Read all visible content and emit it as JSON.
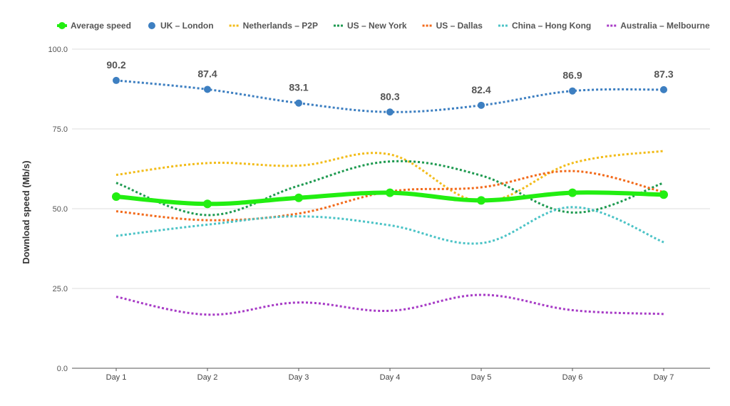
{
  "chart_data": {
    "type": "line",
    "title": "",
    "xlabel": "",
    "ylabel": "Download speed (Mb/s)",
    "ylim": [
      0,
      100
    ],
    "yticks": [
      "0.0",
      "25.0",
      "50.0",
      "75.0",
      "100.0"
    ],
    "categories": [
      "Day 1",
      "Day 2",
      "Day 3",
      "Day 4",
      "Day 5",
      "Day 6",
      "Day 7"
    ],
    "legend_position": "top",
    "grid": true,
    "series": [
      {
        "name": "Average speed",
        "color": "#22ee11",
        "style": "solid-markers",
        "values": [
          53.8,
          51.5,
          53.4,
          55.0,
          52.6,
          55.0,
          54.4
        ]
      },
      {
        "name": "UK – London",
        "color": "#3d7fc1",
        "style": "dotted-markers",
        "values": [
          90.2,
          87.4,
          83.1,
          80.3,
          82.4,
          86.9,
          87.3
        ],
        "labels": [
          "90.2",
          "87.4",
          "83.1",
          "80.3",
          "82.4",
          "86.9",
          "87.3"
        ]
      },
      {
        "name": "Netherlands – P2P",
        "color": "#f2bc1a",
        "style": "dotted",
        "values": [
          60.6,
          64.3,
          63.5,
          67.0,
          52.3,
          64.3,
          68.1
        ]
      },
      {
        "name": "US – New York",
        "color": "#1e9a50",
        "style": "dotted",
        "values": [
          58.1,
          48.0,
          57.2,
          64.8,
          60.4,
          48.8,
          58.1
        ]
      },
      {
        "name": "US – Dallas",
        "color": "#f26a1b",
        "style": "dotted",
        "values": [
          49.2,
          46.4,
          48.5,
          55.4,
          56.7,
          61.8,
          55.2
        ]
      },
      {
        "name": "China – Hong Kong",
        "color": "#4bc3c6",
        "style": "dotted",
        "values": [
          41.5,
          45.0,
          47.6,
          44.8,
          39.2,
          50.5,
          39.5
        ]
      },
      {
        "name": "Australia – Melbourne",
        "color": "#a73bc6",
        "style": "dotted",
        "values": [
          22.4,
          16.8,
          20.6,
          18.0,
          23.0,
          18.2,
          17.0
        ]
      }
    ]
  }
}
